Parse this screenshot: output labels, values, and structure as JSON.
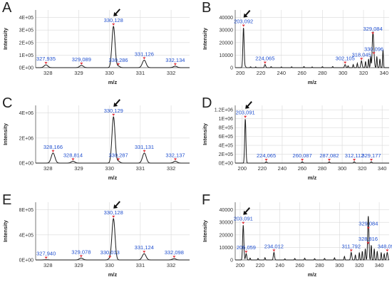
{
  "chart_data": [
    {
      "panel": "A",
      "type": "line",
      "xlabel": "m/z",
      "ylabel": "Intensity",
      "xlim": [
        327.6,
        332.6
      ],
      "ylim": [
        0,
        460000.0
      ],
      "xticks": [
        328,
        329,
        330,
        331,
        332
      ],
      "yticks": [
        0,
        100000.0,
        200000.0,
        300000.0,
        400000.0
      ],
      "ytick_labels": [
        "0E+00",
        "1E+05",
        "2E+05",
        "3E+05",
        "4E+05"
      ],
      "peaks": [
        {
          "x": 327.935,
          "y": 22000.0,
          "w": 0.06,
          "label": "327,935"
        },
        {
          "x": 329.089,
          "y": 18000.0,
          "w": 0.06,
          "label": "329,089"
        },
        {
          "x": 330.128,
          "y": 330000.0,
          "w": 0.05,
          "label": "330,128"
        },
        {
          "x": 330.286,
          "y": 12000.0,
          "w": 0.05,
          "label": "330,286"
        },
        {
          "x": 331.126,
          "y": 60000.0,
          "w": 0.06,
          "label": "331,126"
        },
        {
          "x": 332.134,
          "y": 12000.0,
          "w": 0.06,
          "label": "332,134"
        }
      ],
      "arrow_x": 330.128
    },
    {
      "panel": "B",
      "type": "line",
      "xlabel": "m/z",
      "ylabel": "Intensity",
      "xlim": [
        195,
        345
      ],
      "ylim": [
        0,
        46000
      ],
      "xticks": [
        200,
        220,
        240,
        260,
        280,
        300,
        320,
        340
      ],
      "yticks": [
        0,
        10000,
        20000,
        30000,
        40000
      ],
      "ytick_labels": [
        "0",
        "10000",
        "20000",
        "30000",
        "40000"
      ],
      "peaks": [
        {
          "x": 203.092,
          "y": 32000,
          "w": 0.6,
          "label": "203,092"
        },
        {
          "x": 224.065,
          "y": 2500,
          "w": 0.6,
          "label": "224,065"
        },
        {
          "x": 302.105,
          "y": 2500,
          "w": 0.6,
          "label": "302,105"
        },
        {
          "x": 318.045,
          "y": 5500,
          "w": 0.6,
          "label": "318,045"
        },
        {
          "x": 329.084,
          "y": 26000,
          "w": 0.6,
          "label": "329,084"
        },
        {
          "x": 330.096,
          "y": 10000,
          "w": 0.6,
          "label": "330,096"
        }
      ],
      "noise": [
        [
          205,
          900
        ],
        [
          210,
          700
        ],
        [
          215,
          600
        ],
        [
          230,
          800
        ],
        [
          240,
          600
        ],
        [
          250,
          700
        ],
        [
          262,
          900
        ],
        [
          270,
          600
        ],
        [
          280,
          800
        ],
        [
          290,
          900
        ],
        [
          305,
          1500
        ],
        [
          310,
          2500
        ],
        [
          314,
          3500
        ],
        [
          322,
          5000
        ],
        [
          325,
          7000
        ],
        [
          327,
          9000
        ],
        [
          333,
          9000
        ],
        [
          336,
          7000
        ],
        [
          339,
          14000
        ]
      ],
      "arrow_x": 203.092
    },
    {
      "panel": "C",
      "type": "line",
      "xlabel": "m/z",
      "ylabel": "Intensity",
      "xlim": [
        327.6,
        332.6
      ],
      "ylim": [
        0,
        4600000.0
      ],
      "xticks": [
        328,
        329,
        330,
        331,
        332
      ],
      "yticks": [
        0,
        2000000.0,
        4000000.0
      ],
      "ytick_labels": [
        "0E+00",
        "2E+06",
        "4E+06"
      ],
      "peaks": [
        {
          "x": 328.166,
          "y": 800000.0,
          "w": 0.06,
          "label": "328,166"
        },
        {
          "x": 328.814,
          "y": 150000.0,
          "w": 0.06,
          "label": "328,814"
        },
        {
          "x": 330.129,
          "y": 3700000.0,
          "w": 0.05,
          "label": "330,129"
        },
        {
          "x": 330.287,
          "y": 150000.0,
          "w": 0.05,
          "label": "330,287"
        },
        {
          "x": 331.131,
          "y": 800000.0,
          "w": 0.06,
          "label": "331,131"
        },
        {
          "x": 332.137,
          "y": 150000.0,
          "w": 0.06,
          "label": "332,137"
        }
      ],
      "arrow_x": 330.129
    },
    {
      "panel": "D",
      "type": "line",
      "xlabel": "m/z",
      "ylabel": "Intensity",
      "xlim": [
        193,
        347
      ],
      "ylim": [
        0,
        1300000.0
      ],
      "xticks": [
        200,
        220,
        240,
        260,
        280,
        300,
        320,
        340
      ],
      "yticks": [
        0,
        200000.0,
        400000.0,
        600000.0,
        800000.0,
        1000000.0,
        1200000.0
      ],
      "ytick_labels": [
        "0E+00",
        "2E+05",
        "4E+05",
        "6E+05",
        "8E+05",
        "1E+06",
        "1.2E+06"
      ],
      "peaks": [
        {
          "x": 203.091,
          "y": 1000000.0,
          "w": 0.6,
          "label": "203,091"
        },
        {
          "x": 224.065,
          "y": 30000.0,
          "w": 0.6,
          "label": "224,065"
        },
        {
          "x": 260.087,
          "y": 30000.0,
          "w": 0.6,
          "label": "260,087"
        },
        {
          "x": 287.082,
          "y": 30000.0,
          "w": 0.6,
          "label": "287,082"
        },
        {
          "x": 312.112,
          "y": 30000.0,
          "w": 0.6,
          "label": "312,112"
        },
        {
          "x": 329.177,
          "y": 30000.0,
          "w": 0.6,
          "label": "329,177"
        }
      ],
      "arrow_x": 203.091
    },
    {
      "panel": "E",
      "type": "line",
      "xlabel": "m/z",
      "ylabel": "Intensity",
      "xlim": [
        327.6,
        332.6
      ],
      "ylim": [
        0,
        920000.0
      ],
      "xticks": [
        328,
        329,
        330,
        331,
        332
      ],
      "yticks": [
        0,
        400000.0,
        800000.0
      ],
      "ytick_labels": [
        "0E+00",
        "4E+05",
        "8E+05"
      ],
      "peaks": [
        {
          "x": 327.94,
          "y": 4000.0,
          "w": 0.06,
          "label": "327,940"
        },
        {
          "x": 329.078,
          "y": 30000.0,
          "w": 0.06,
          "label": "329,078"
        },
        {
          "x": 330.128,
          "y": 660000.0,
          "w": 0.05,
          "label": "330,128"
        },
        {
          "x": 330.013,
          "y": 20000.0,
          "w": 0.05,
          "label": "330,013"
        },
        {
          "x": 331.124,
          "y": 100000.0,
          "w": 0.06,
          "label": "331,124"
        },
        {
          "x": 332.098,
          "y": 20000.0,
          "w": 0.06,
          "label": "332,098"
        }
      ],
      "arrow_x": 330.128
    },
    {
      "panel": "F",
      "type": "line",
      "xlabel": "m/z",
      "ylabel": "Intensity",
      "xlim": [
        195,
        350
      ],
      "ylim": [
        0,
        46000
      ],
      "xticks": [
        200,
        220,
        240,
        260,
        280,
        300,
        320,
        340
      ],
      "yticks": [
        0,
        10000,
        20000,
        30000,
        40000
      ],
      "ytick_labels": [
        "0",
        "10000",
        "20000",
        "30000",
        "40000"
      ],
      "peaks": [
        {
          "x": 203.091,
          "y": 28000,
          "w": 0.6,
          "label": "203,091"
        },
        {
          "x": 206.059,
          "y": 5000,
          "w": 0.6,
          "label": "206,059"
        },
        {
          "x": 234.012,
          "y": 6000,
          "w": 0.6,
          "label": "234,012"
        },
        {
          "x": 311.792,
          "y": 6000,
          "w": 0.6,
          "label": "311,792"
        },
        {
          "x": 328.816,
          "y": 12000,
          "w": 0.6,
          "label": "328,816"
        },
        {
          "x": 329.084,
          "y": 24000,
          "w": 0.6,
          "label": "329,084"
        },
        {
          "x": 348.092,
          "y": 6000,
          "w": 0.6,
          "label": "348,092"
        }
      ],
      "noise": [
        [
          210,
          1500
        ],
        [
          218,
          1200
        ],
        [
          225,
          1800
        ],
        [
          245,
          1000
        ],
        [
          255,
          1200
        ],
        [
          265,
          1400
        ],
        [
          275,
          1100
        ],
        [
          285,
          1300
        ],
        [
          295,
          1700
        ],
        [
          305,
          2800
        ],
        [
          316,
          4000
        ],
        [
          320,
          6000
        ],
        [
          323,
          7000
        ],
        [
          326,
          9000
        ],
        [
          332,
          12000
        ],
        [
          335,
          9000
        ],
        [
          338,
          7000
        ],
        [
          342,
          6000
        ],
        [
          345,
          5000
        ]
      ],
      "arrow_x": 203.091
    }
  ],
  "colors": {
    "trace": "#1a1a1a",
    "label": "#1f4fcf",
    "marker": "#e0303a",
    "grid": "#d9d9d9",
    "axis": "#555555"
  }
}
